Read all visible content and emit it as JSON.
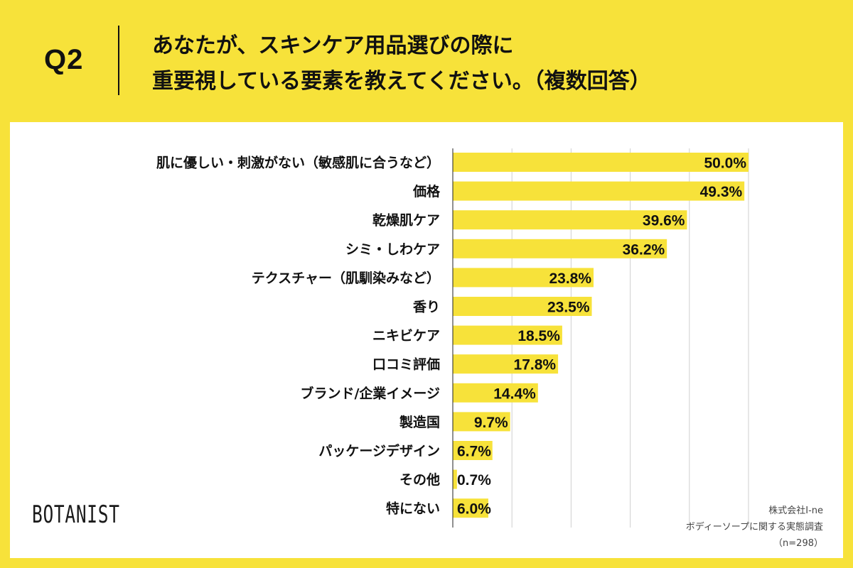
{
  "header": {
    "question_label": "Q2",
    "question_line1": "あなたが、スキンケア用品選びの際に",
    "question_line2": "重要視している要素を教えてください。（複数回答）"
  },
  "chart_data": {
    "type": "bar",
    "orientation": "horizontal",
    "title": "あなたが、スキンケア用品選びの際に重要視している要素を教えてください。（複数回答）",
    "categories": [
      "肌に優しい・刺激がない（敏感肌に合うなど）",
      "価格",
      "乾燥肌ケア",
      "シミ・しわケア",
      "テクスチャー（肌馴染みなど）",
      "香り",
      "ニキビケア",
      "口コミ評価",
      "ブランド/企業イメージ",
      "製造国",
      "パッケージデザイン",
      "その他",
      "特にない"
    ],
    "values": [
      50.0,
      49.3,
      39.6,
      36.2,
      23.8,
      23.5,
      18.5,
      17.8,
      14.4,
      9.7,
      6.7,
      0.7,
      6.0
    ],
    "value_labels": [
      "50.0%",
      "49.3%",
      "39.6%",
      "36.2%",
      "23.8%",
      "23.5%",
      "18.5%",
      "17.8%",
      "14.4%",
      "9.7%",
      "6.7%",
      "0.7%",
      "6.0%"
    ],
    "xlim": [
      0,
      50
    ],
    "grid_step": 10,
    "bar_color": "#f7e23a",
    "grid": true
  },
  "brand": {
    "logo": "BOTANIST"
  },
  "source": {
    "company": "株式会社I-ne",
    "survey": "ボディーソープに関する実態調査",
    "sample": "（n=298）"
  }
}
